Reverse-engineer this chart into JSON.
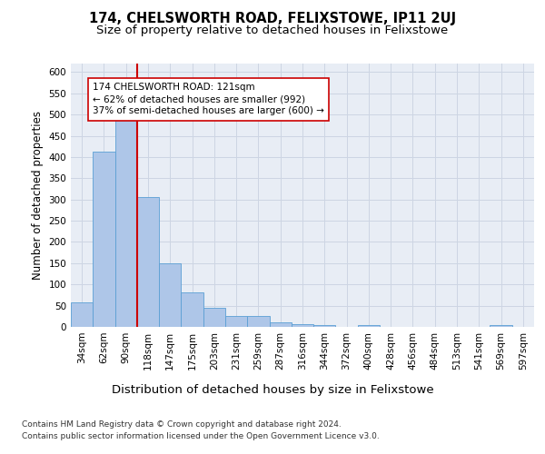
{
  "title": "174, CHELSWORTH ROAD, FELIXSTOWE, IP11 2UJ",
  "subtitle": "Size of property relative to detached houses in Felixstowe",
  "xlabel": "Distribution of detached houses by size in Felixstowe",
  "ylabel": "Number of detached properties",
  "footnote1": "Contains HM Land Registry data © Crown copyright and database right 2024.",
  "footnote2": "Contains public sector information licensed under the Open Government Licence v3.0.",
  "bin_labels": [
    "34sqm",
    "62sqm",
    "90sqm",
    "118sqm",
    "147sqm",
    "175sqm",
    "203sqm",
    "231sqm",
    "259sqm",
    "287sqm",
    "316sqm",
    "344sqm",
    "372sqm",
    "400sqm",
    "428sqm",
    "456sqm",
    "484sqm",
    "513sqm",
    "541sqm",
    "569sqm",
    "597sqm"
  ],
  "bar_values": [
    58,
    412,
    492,
    305,
    150,
    82,
    45,
    25,
    25,
    10,
    7,
    4,
    0,
    4,
    0,
    0,
    0,
    0,
    0,
    4,
    0
  ],
  "bar_color": "#aec6e8",
  "bar_edge_color": "#5a9fd4",
  "vline_x_index": 3,
  "vline_color": "#cc0000",
  "annotation_text": "174 CHELSWORTH ROAD: 121sqm\n← 62% of detached houses are smaller (992)\n37% of semi-detached houses are larger (600) →",
  "annotation_box_color": "#ffffff",
  "annotation_box_edge": "#cc0000",
  "ylim": [
    0,
    620
  ],
  "yticks": [
    0,
    50,
    100,
    150,
    200,
    250,
    300,
    350,
    400,
    450,
    500,
    550,
    600
  ],
  "grid_color": "#cdd5e3",
  "background_color": "#e8edf5",
  "title_fontsize": 10.5,
  "subtitle_fontsize": 9.5,
  "xlabel_fontsize": 9.5,
  "ylabel_fontsize": 8.5,
  "tick_fontsize": 7.5,
  "annotation_fontsize": 7.5,
  "footnote_fontsize": 6.5
}
